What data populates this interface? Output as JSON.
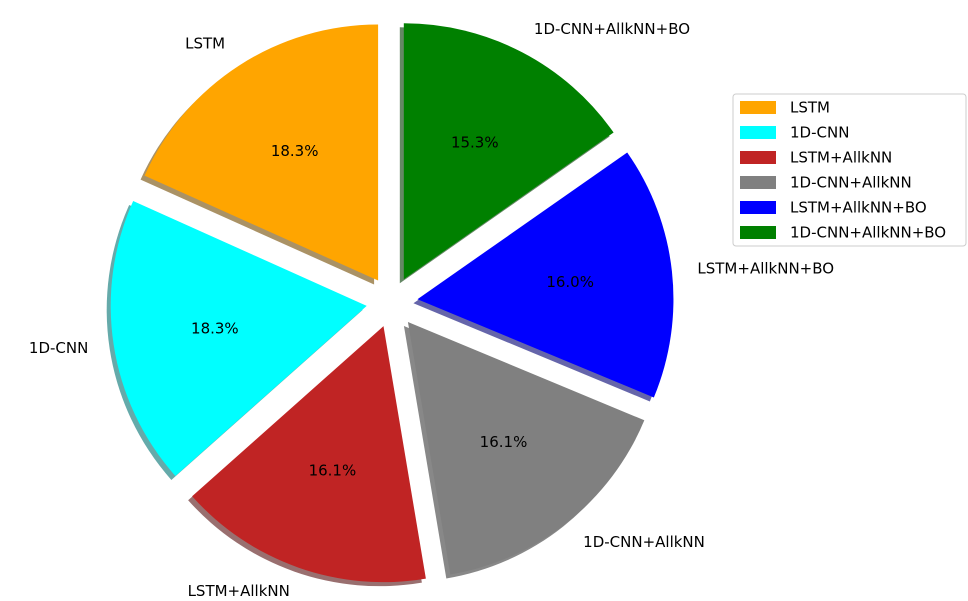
{
  "chart_data": {
    "type": "pie",
    "categories": [
      "LSTM",
      "1D-CNN",
      "LSTM+AllkNN",
      "1D-CNN+AllkNN",
      "LSTM+AllkNN+BO",
      "1D-CNN+AllkNN+BO"
    ],
    "values": [
      18.3,
      18.3,
      16.1,
      16.1,
      16.0,
      15.3
    ],
    "value_labels": [
      "18.3%",
      "18.3%",
      "16.1%",
      "16.1%",
      "16.0%",
      "15.3%"
    ],
    "colors": [
      "#ffa500",
      "#00ffff",
      "#c02424",
      "#808080",
      "#0000ff",
      "#008000"
    ],
    "legend": "upper right"
  }
}
